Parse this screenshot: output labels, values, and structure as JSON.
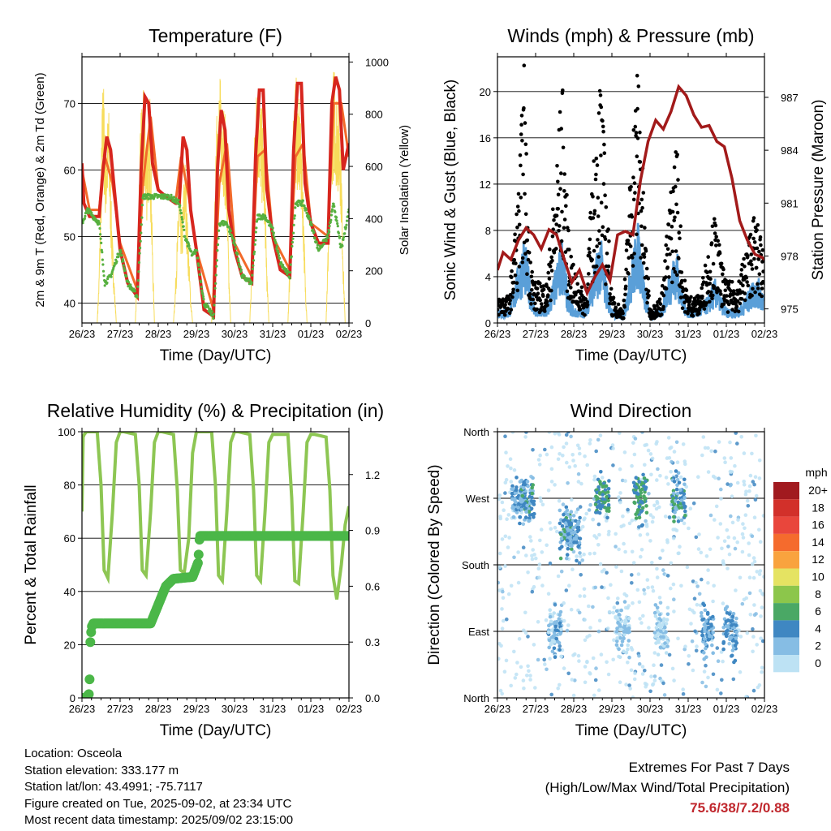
{
  "x_ticks": [
    "26/23",
    "27/23",
    "28/23",
    "29/23",
    "30/23",
    "31/23",
    "01/23",
    "02/23"
  ],
  "chart_data": [
    {
      "type": "line",
      "title": "Temperature (F)",
      "xlabel": "Time (Day/UTC)",
      "ylabel": "2m & 9m T (Red, Orange) & 2m Td (Green)",
      "y2label": "Solar Insolation (Yellow)",
      "ylim": [
        37,
        77
      ],
      "y_ticks": [
        40,
        50,
        60,
        70
      ],
      "y2lim": [
        0,
        1020
      ],
      "y2_ticks": [
        0,
        200,
        400,
        600,
        800,
        1000
      ],
      "x_range_days": [
        0,
        7
      ],
      "colors": {
        "temp2m": "#d7261e",
        "temp9m": "#f26a2a",
        "dewpoint": "#56b03f",
        "solar": "#f7dc5b"
      },
      "series": [
        {
          "name": "2m T",
          "axis": "left",
          "x": [
            0,
            0.05,
            0.2,
            0.45,
            0.55,
            0.65,
            0.75,
            0.85,
            1.0,
            1.2,
            1.45,
            1.55,
            1.65,
            1.75,
            1.85,
            2.0,
            2.2,
            2.45,
            2.55,
            2.65,
            2.75,
            2.85,
            3.0,
            3.2,
            3.45,
            3.55,
            3.65,
            3.75,
            3.85,
            4.0,
            4.2,
            4.45,
            4.55,
            4.65,
            4.75,
            4.85,
            5.0,
            5.2,
            5.45,
            5.55,
            5.65,
            5.75,
            5.85,
            6.0,
            6.2,
            6.45,
            6.55,
            6.65,
            6.75,
            6.85,
            7.0
          ],
          "values": [
            61,
            55,
            53,
            53,
            60,
            65,
            63,
            57,
            48,
            43,
            41,
            60,
            71,
            70,
            61,
            57,
            56,
            55,
            55,
            65,
            63,
            54,
            48,
            39,
            38,
            60,
            69,
            66,
            54,
            48,
            44,
            43,
            62,
            72,
            72,
            57,
            50,
            45,
            44,
            63,
            73,
            73,
            58,
            52,
            49,
            49,
            70,
            74,
            72,
            60,
            64
          ]
        },
        {
          "name": "9m T",
          "axis": "left",
          "x": [
            0,
            0.2,
            0.45,
            0.6,
            0.8,
            1.0,
            1.45,
            1.6,
            1.8,
            2.0,
            2.45,
            2.6,
            2.8,
            3.0,
            3.45,
            3.6,
            3.8,
            4.0,
            4.45,
            4.6,
            4.8,
            5.0,
            5.45,
            5.6,
            5.8,
            6.0,
            6.45,
            6.6,
            6.8,
            7.0
          ],
          "values": [
            60,
            54,
            54,
            62,
            58,
            49,
            42,
            58,
            68,
            57,
            55,
            62,
            56,
            48,
            39,
            58,
            64,
            49,
            44,
            62,
            63,
            50,
            45,
            62,
            64,
            52,
            50,
            70,
            70,
            62
          ]
        },
        {
          "name": "2m Td",
          "axis": "left",
          "x": [
            0,
            0.15,
            0.45,
            0.6,
            0.75,
            1.0,
            1.2,
            1.45,
            1.6,
            1.8,
            2.0,
            2.3,
            2.55,
            2.7,
            2.9,
            3.0,
            3.2,
            3.45,
            3.6,
            3.8,
            4.0,
            4.2,
            4.45,
            4.6,
            4.8,
            5.0,
            5.2,
            5.45,
            5.6,
            5.8,
            6.0,
            6.2,
            6.45,
            6.6,
            6.8,
            7.0
          ],
          "values": [
            52,
            54,
            52,
            43,
            44,
            48,
            43,
            41,
            56,
            56,
            56,
            56,
            55,
            50,
            47,
            48,
            40,
            38,
            52,
            52,
            49,
            44,
            43,
            53,
            53,
            51,
            46,
            44,
            55,
            55,
            52,
            48,
            50,
            55,
            48,
            54
          ]
        },
        {
          "name": "Solar",
          "axis": "right",
          "x": [
            0,
            0.4,
            0.45,
            0.55,
            0.62,
            0.7,
            0.78,
            0.85,
            0.9,
            1.4,
            1.45,
            1.55,
            1.62,
            1.7,
            1.78,
            1.85,
            1.9,
            2.4,
            2.45,
            2.55,
            2.62,
            2.7,
            2.78,
            2.85,
            2.9,
            3.4,
            3.45,
            3.55,
            3.62,
            3.7,
            3.78,
            3.85,
            3.9,
            4.4,
            4.45,
            4.55,
            4.62,
            4.7,
            4.78,
            4.85,
            4.9,
            5.4,
            5.45,
            5.55,
            5.62,
            5.7,
            5.78,
            5.85,
            5.9,
            6.4,
            6.45,
            6.55,
            6.62,
            6.7,
            6.78,
            6.85,
            6.9,
            7.0
          ],
          "values": [
            0,
            0,
            200,
            1000,
            700,
            850,
            400,
            150,
            0,
            0,
            250,
            850,
            900,
            700,
            900,
            300,
            0,
            0,
            150,
            550,
            400,
            650,
            350,
            100,
            0,
            0,
            250,
            900,
            950,
            900,
            750,
            200,
            0,
            0,
            250,
            900,
            950,
            850,
            700,
            200,
            0,
            0,
            250,
            900,
            950,
            850,
            650,
            200,
            0,
            0,
            300,
            950,
            1000,
            900,
            800,
            250,
            0,
            0
          ]
        }
      ]
    },
    {
      "type": "scatter",
      "title": "Winds (mph) & Pressure (mb)",
      "xlabel": "Time (Day/UTC)",
      "ylabel": "Sonic Wind & Gust (Blue, Black)",
      "y2label": "Station Pressure (Maroon)",
      "ylim": [
        0,
        23
      ],
      "y_ticks": [
        0,
        4,
        8,
        12,
        16,
        20
      ],
      "y2lim": [
        974.2,
        989.3
      ],
      "y2_ticks": [
        975,
        978,
        981,
        984,
        987
      ],
      "x_range_days": [
        0,
        7
      ],
      "colors": {
        "gust": "#000000",
        "wind": "#5a9fd8",
        "pressure": "#a21a1a"
      },
      "series": [
        {
          "name": "Gust",
          "axis": "left",
          "x": [
            0,
            0.3,
            0.55,
            0.7,
            0.8,
            0.95,
            1.3,
            1.55,
            1.7,
            1.85,
            2.0,
            2.3,
            2.55,
            2.7,
            2.85,
            3.0,
            3.3,
            3.55,
            3.7,
            3.85,
            4.0,
            4.3,
            4.55,
            4.7,
            4.85,
            5.0,
            5.3,
            5.55,
            5.7,
            5.85,
            6.0,
            6.3,
            6.55,
            6.7,
            6.85,
            7.0
          ],
          "values": [
            2,
            2,
            10,
            19,
            8,
            3,
            3,
            12,
            18,
            7,
            4,
            2,
            13,
            19,
            10,
            2,
            1,
            15,
            20,
            8,
            1,
            2,
            10,
            14,
            4,
            2,
            2,
            6,
            8,
            5,
            3,
            3,
            6,
            8,
            7,
            6
          ]
        },
        {
          "name": "Wind",
          "axis": "left",
          "x": [
            0,
            0.3,
            0.55,
            0.7,
            0.85,
            1.0,
            1.3,
            1.55,
            1.7,
            1.85,
            2.0,
            2.3,
            2.55,
            2.7,
            2.85,
            3.0,
            3.3,
            3.55,
            3.7,
            3.85,
            4.0,
            4.3,
            4.55,
            4.7,
            4.85,
            5.0,
            5.3,
            5.55,
            5.7,
            5.85,
            6.0,
            6.3,
            6.55,
            6.7,
            6.85,
            7.0
          ],
          "values": [
            1,
            1,
            4,
            6,
            3,
            1,
            1,
            4,
            6,
            2,
            1,
            1,
            4,
            6,
            3,
            1,
            0.5,
            5,
            7,
            3,
            0.5,
            1,
            4,
            5,
            2,
            1,
            1,
            2,
            3,
            2,
            1,
            1,
            2,
            3,
            3,
            2
          ]
        },
        {
          "name": "Pressure",
          "axis": "right",
          "x": [
            0,
            0.15,
            0.35,
            0.55,
            0.75,
            0.95,
            1.15,
            1.35,
            1.55,
            1.75,
            1.95,
            2.15,
            2.35,
            2.55,
            2.75,
            2.95,
            3.15,
            3.35,
            3.55,
            3.75,
            3.95,
            4.15,
            4.35,
            4.55,
            4.75,
            4.95,
            5.15,
            5.35,
            5.55,
            5.75,
            5.95,
            6.15,
            6.35,
            6.55,
            6.75,
            6.95,
            7.0
          ],
          "values": [
            977.2,
            978.2,
            977.8,
            978.9,
            979.6,
            979.2,
            978.4,
            979.5,
            979.2,
            977.8,
            976.5,
            977.2,
            975.9,
            976.8,
            977.5,
            976.6,
            979.2,
            979.4,
            979.2,
            982.3,
            984.5,
            985.7,
            985.2,
            986.2,
            987.6,
            987.1,
            986.0,
            985.3,
            985.4,
            984.5,
            984.2,
            982.4,
            980.0,
            978.9,
            978.1,
            977.9,
            977.8
          ]
        }
      ]
    },
    {
      "type": "line",
      "title": "Relative Humidity (%) & Precipitation (in)",
      "xlabel": "Time (Day/UTC)",
      "ylabel": "Percent & Total Rainfall",
      "ylim": [
        0,
        100
      ],
      "y_ticks": [
        0,
        20,
        40,
        60,
        80,
        100
      ],
      "y2lim": [
        0,
        1.43
      ],
      "y2_ticks": [
        "0.0",
        "0.3",
        "0.6",
        "0.9",
        "1.2"
      ],
      "x_range_days": [
        0,
        7
      ],
      "colors": {
        "rh": "#8dc653",
        "precip": "#4bb748"
      },
      "series": [
        {
          "name": "RH",
          "axis": "left",
          "x": [
            0,
            0.03,
            0.06,
            0.12,
            0.4,
            0.5,
            0.58,
            0.68,
            0.8,
            0.9,
            1.0,
            1.1,
            1.4,
            1.5,
            1.58,
            1.68,
            1.8,
            1.9,
            2.0,
            2.1,
            2.4,
            2.5,
            2.58,
            2.68,
            2.8,
            2.9,
            3.0,
            3.1,
            3.4,
            3.5,
            3.58,
            3.68,
            3.8,
            3.9,
            4.0,
            4.1,
            4.4,
            4.5,
            4.58,
            4.68,
            4.8,
            4.9,
            5.0,
            5.1,
            5.4,
            5.5,
            5.58,
            5.68,
            5.8,
            5.9,
            6.0,
            6.1,
            6.4,
            6.5,
            6.58,
            6.68,
            6.8,
            6.9,
            7.0
          ],
          "values": [
            70,
            98,
            99,
            100,
            100,
            80,
            48,
            45,
            70,
            96,
            100,
            100,
            99,
            80,
            48,
            46,
            70,
            96,
            100,
            100,
            99,
            78,
            48,
            47,
            60,
            92,
            100,
            100,
            100,
            80,
            46,
            44,
            70,
            96,
            100,
            100,
            99,
            78,
            46,
            44,
            70,
            96,
            99,
            99,
            99,
            75,
            44,
            43,
            70,
            96,
            99,
            99,
            98,
            78,
            46,
            37,
            50,
            65,
            72
          ]
        },
        {
          "name": "Precip",
          "axis": "right",
          "x": [
            0,
            0.1,
            0.18,
            0.2,
            0.22,
            0.25,
            0.3,
            1.8,
            2.0,
            2.2,
            2.4,
            2.9,
            3.05,
            3.08,
            3.1,
            7.0
          ],
          "values": [
            0,
            0,
            0.02,
            0.1,
            0.3,
            0.38,
            0.4,
            0.4,
            0.5,
            0.6,
            0.64,
            0.65,
            0.73,
            0.85,
            0.87,
            0.87
          ]
        }
      ]
    },
    {
      "type": "scatter",
      "title": "Wind Direction",
      "xlabel": "Time (Day/UTC)",
      "ylabel": "Direction (Colored By Speed)",
      "y_ticks": [
        "North",
        "West",
        "South",
        "East",
        "North"
      ],
      "legend_title": "mph",
      "legend_labels": [
        "20+",
        "18",
        "16",
        "14",
        "12",
        "10",
        "8",
        "6",
        "4",
        "2",
        "0"
      ],
      "legend_colors": [
        "#a11a1f",
        "#d2302a",
        "#e9463c",
        "#f56b2d",
        "#f9a33e",
        "#e5e362",
        "#8cc64b",
        "#4aa865",
        "#3f87c2",
        "#86bde4",
        "#bde2f4"
      ],
      "legend_position": "right",
      "clusters": [
        {
          "x": 0.55,
          "dir": "west",
          "speed": 3
        },
        {
          "x": 0.8,
          "dir": "west",
          "speed": 4
        },
        {
          "x": 1.8,
          "dir": "southwest",
          "speed": 4
        },
        {
          "x": 2.0,
          "dir": "southwest",
          "speed": 3
        },
        {
          "x": 2.75,
          "dir": "west",
          "speed": 5
        },
        {
          "x": 3.75,
          "dir": "west",
          "speed": 5
        },
        {
          "x": 4.75,
          "dir": "west",
          "speed": 4
        },
        {
          "x": 1.5,
          "dir": "east",
          "speed": 2
        },
        {
          "x": 3.3,
          "dir": "east",
          "speed": 1
        },
        {
          "x": 4.3,
          "dir": "east",
          "speed": 1
        },
        {
          "x": 5.5,
          "dir": "east",
          "speed": 3
        },
        {
          "x": 6.1,
          "dir": "east",
          "speed": 3
        }
      ]
    }
  ],
  "info": {
    "location": "Location: Osceola",
    "elevation": "Station elevation: 333.177 m",
    "latlon": "Station lat/lon: 43.4991; -75.7117",
    "created": "Figure created on Tue, 2025-09-02, at 23:34 UTC",
    "recent": "Most recent data timestamp: 2025/09/02 23:15:00"
  },
  "extremes": {
    "title": "Extremes For Past 7 Days",
    "subtitle": "(High/Low/Max Wind/Total Precipitation)",
    "values": "75.6/38/7.2/0.88"
  }
}
